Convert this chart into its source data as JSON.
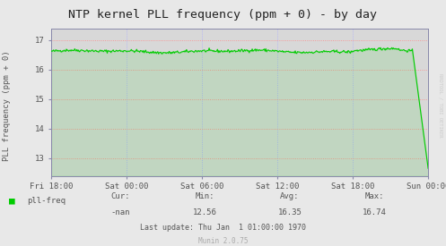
{
  "title": "NTP kernel PLL frequency (ppm + 0) - by day",
  "ylabel": "PLL frequency (ppm + 0)",
  "bg_color": "#e8e8e8",
  "plot_bg_color": "#d8d8d8",
  "line_color": "#00cc00",
  "fill_color": "#00cc00",
  "grid_color_h": "#ff8888",
  "grid_color_v": "#aaaaff",
  "border_color": "#8888aa",
  "ylim": [
    12.399,
    17.401
  ],
  "yticks": [
    13,
    14,
    15,
    16,
    17
  ],
  "xtick_labels": [
    "Fri 18:00",
    "Sat 00:00",
    "Sat 06:00",
    "Sat 12:00",
    "Sat 18:00",
    "Sun 00:00"
  ],
  "stats_cur": "-nan",
  "stats_min": "12.56",
  "stats_avg": "16.35",
  "stats_max": "16.74",
  "legend_label": "pll-freq",
  "legend_color": "#00cc00",
  "watermark": "Munin 2.0.75",
  "last_update": "Last update: Thu Jan  1 01:00:00 1970",
  "rrdtool_text": "RRDTOOL / TOBI OETIKER",
  "title_color": "#222222",
  "axis_label_color": "#555555",
  "tick_color": "#555555",
  "footer_color": "#aaaaaa",
  "rrdtool_color": "#cccccc"
}
